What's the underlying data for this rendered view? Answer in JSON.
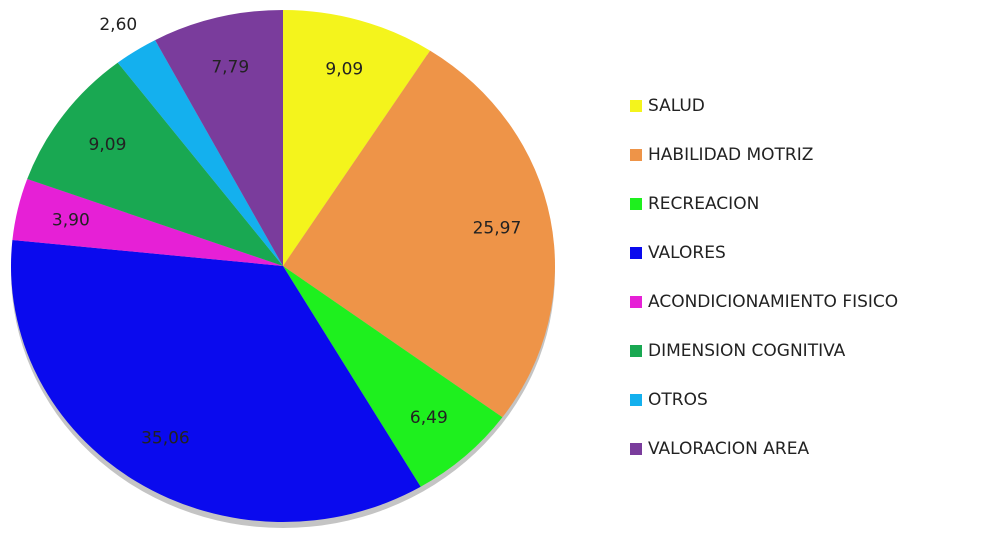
{
  "chart_data": {
    "type": "pie",
    "categories": [
      "SALUD",
      "HABILIDAD MOTRIZ",
      "RECREACION",
      "VALORES",
      "ACONDICIONAMIENTO FISICO",
      "DIMENSION COGNITIVA",
      "OTROS",
      "VALORACION AREA"
    ],
    "values": [
      9.09,
      25.97,
      6.49,
      35.06,
      3.9,
      9.09,
      2.6,
      7.79
    ],
    "value_labels": [
      "9,09",
      "25,97",
      "6,49",
      "35,06",
      "3,90",
      "9,09",
      "2,60",
      "7,79"
    ],
    "colors": [
      "#f4f41c",
      "#ee9448",
      "#1ef01e",
      "#0a0aee",
      "#e620d6",
      "#19a852",
      "#14b0ee",
      "#7a3c9c"
    ],
    "legend": "right"
  }
}
